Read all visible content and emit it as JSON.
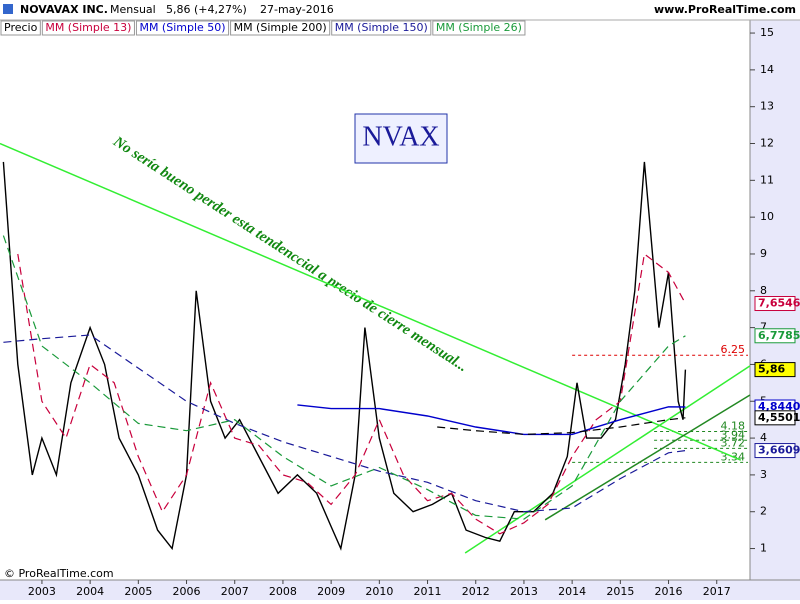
{
  "chart_data": {
    "type": "line",
    "title": "NOVAVAX INC.",
    "period": "Mensual",
    "last_quote": "5,86 (+4,27%)",
    "date": "27-may-2016",
    "site": "www.ProRealTime.com",
    "footer": "© ProRealTime.com",
    "symbol_box": "NVAX",
    "annotation": "No sería bueno perder esta tendenccial a precio de cierre mensual...",
    "xlim": [
      2002.13,
      2017.69
    ],
    "xticks": [
      2003,
      2004,
      2005,
      2006,
      2007,
      2008,
      2009,
      2010,
      2011,
      2012,
      2013,
      2014,
      2015,
      2016,
      2017
    ],
    "ylim": [
      0.2,
      15.3
    ],
    "yticks": [
      1,
      2,
      3,
      4,
      5,
      6,
      7,
      8,
      9,
      10,
      11,
      12,
      13,
      14,
      15
    ],
    "series": [
      {
        "name": "Precio",
        "color": "#000000",
        "dash": false,
        "label_background": "#ffff00",
        "last_value_label": "5,86",
        "x": [
          2002.2,
          2002.5,
          2002.8,
          2003.0,
          2003.3,
          2003.6,
          2004.0,
          2004.3,
          2004.6,
          2005.0,
          2005.4,
          2005.7,
          2006.0,
          2006.2,
          2006.5,
          2006.8,
          2007.1,
          2007.5,
          2007.9,
          2008.3,
          2008.7,
          2009.0,
          2009.2,
          2009.5,
          2009.7,
          2010.0,
          2010.3,
          2010.7,
          2011.1,
          2011.5,
          2011.8,
          2012.2,
          2012.5,
          2012.8,
          2013.2,
          2013.6,
          2013.9,
          2014.1,
          2014.3,
          2014.6,
          2014.9,
          2015.1,
          2015.3,
          2015.5,
          2015.6,
          2015.8,
          2016.0,
          2016.2,
          2016.3,
          2016.35
        ],
        "values": [
          11.5,
          6,
          3,
          4,
          3,
          5.5,
          7,
          6,
          4,
          3,
          1.5,
          1,
          3,
          8,
          5,
          4,
          4.5,
          3.5,
          2.5,
          3,
          2.5,
          1.6,
          1,
          3,
          7,
          4,
          2.5,
          2,
          2.2,
          2.5,
          1.5,
          1.3,
          1.2,
          2,
          2,
          2.5,
          3.5,
          5.5,
          4,
          4,
          4.5,
          6,
          8,
          11.5,
          10,
          7,
          8.5,
          5,
          4.5,
          5.86
        ]
      },
      {
        "name": "MM (Simple 13)",
        "color": "#c8003c",
        "dash": true,
        "label_background": "#ffffff",
        "last_value_label": "7,6546",
        "x": [
          2002.5,
          2003,
          2003.5,
          2004,
          2004.5,
          2005,
          2005.5,
          2006,
          2006.5,
          2007,
          2007.5,
          2008,
          2008.5,
          2009,
          2009.5,
          2010,
          2010.5,
          2011,
          2011.5,
          2012,
          2012.5,
          2013,
          2013.5,
          2014,
          2014.5,
          2015,
          2015.5,
          2016,
          2016.35
        ],
        "values": [
          9,
          5,
          4,
          6,
          5.5,
          3.5,
          2,
          3,
          5.5,
          4,
          3.8,
          3,
          2.8,
          2.2,
          3,
          4.5,
          3,
          2.3,
          2.5,
          1.8,
          1.4,
          1.7,
          2.2,
          3.5,
          4.5,
          5,
          9,
          8.5,
          7.6546
        ]
      },
      {
        "name": "MM (Simple 50)",
        "color": "#0000cc",
        "dash": false,
        "label_background": "#ffffff",
        "last_value_label": "4,8440",
        "x": [
          2008.3,
          2009,
          2010,
          2011,
          2012,
          2013,
          2014,
          2015,
          2016,
          2016.35
        ],
        "values": [
          4.9,
          4.8,
          4.8,
          4.6,
          4.3,
          4.1,
          4.1,
          4.5,
          4.85,
          4.844
        ]
      },
      {
        "name": "MM (Simple 200)",
        "color": "#000000",
        "dash": true,
        "label_background": "#ffffff",
        "last_value_label": "4,5501",
        "x": [
          2011.2,
          2012,
          2013,
          2014,
          2015,
          2016,
          2016.35
        ],
        "values": [
          4.3,
          4.2,
          4.1,
          4.15,
          4.3,
          4.5,
          4.5501
        ]
      },
      {
        "name": "MM (Simple 150)",
        "color": "#1a1a99",
        "dash": true,
        "label_background": "#ffffff",
        "last_value_label": "3,6609",
        "x": [
          2002.2,
          2003,
          2004,
          2005,
          2006,
          2007,
          2008,
          2009,
          2010,
          2011,
          2012,
          2013,
          2014,
          2015,
          2016,
          2016.35
        ],
        "values": [
          6.6,
          6.7,
          6.8,
          5.9,
          5,
          4.4,
          3.9,
          3.5,
          3.1,
          2.8,
          2.3,
          2.0,
          2.1,
          2.9,
          3.6,
          3.6609
        ]
      },
      {
        "name": "MM (Simple 26)",
        "color": "#1a9a3a",
        "dash": true,
        "label_background": "#ffffff",
        "last_value_label": "6,7785",
        "x": [
          2002.2,
          2003,
          2004,
          2005,
          2006,
          2007,
          2008,
          2009,
          2010,
          2011,
          2012,
          2013,
          2014,
          2015,
          2016,
          2016.35
        ],
        "values": [
          9.5,
          6.5,
          5.5,
          4.4,
          4.2,
          4.5,
          3.5,
          2.7,
          3.2,
          2.6,
          1.9,
          1.8,
          2.7,
          5,
          6.5,
          6.7785
        ]
      }
    ],
    "trendlines": [
      {
        "color": "#33ee33",
        "x": [
          2002.13,
          2017.5
        ],
        "y": [
          12.0,
          3.4
        ]
      },
      {
        "color": "#33ee33",
        "x": [
          2011.78,
          2017.69
        ],
        "y": [
          0.88,
          5.96
        ]
      },
      {
        "color": "#228822",
        "x": [
          2013.44,
          2017.69
        ],
        "y": [
          1.78,
          5.17
        ]
      }
    ],
    "levels": [
      {
        "value": 6.25,
        "color": "#dd0000",
        "from": 2014.0
      },
      {
        "value": 4.18,
        "color": "#228822",
        "from": 2015.7
      },
      {
        "value": 3.94,
        "color": "#228822",
        "from": 2015.7
      },
      {
        "value": 3.72,
        "color": "#228822",
        "from": 2015.7
      },
      {
        "value": 3.34,
        "color": "#228822",
        "from": 2014.0
      }
    ]
  }
}
